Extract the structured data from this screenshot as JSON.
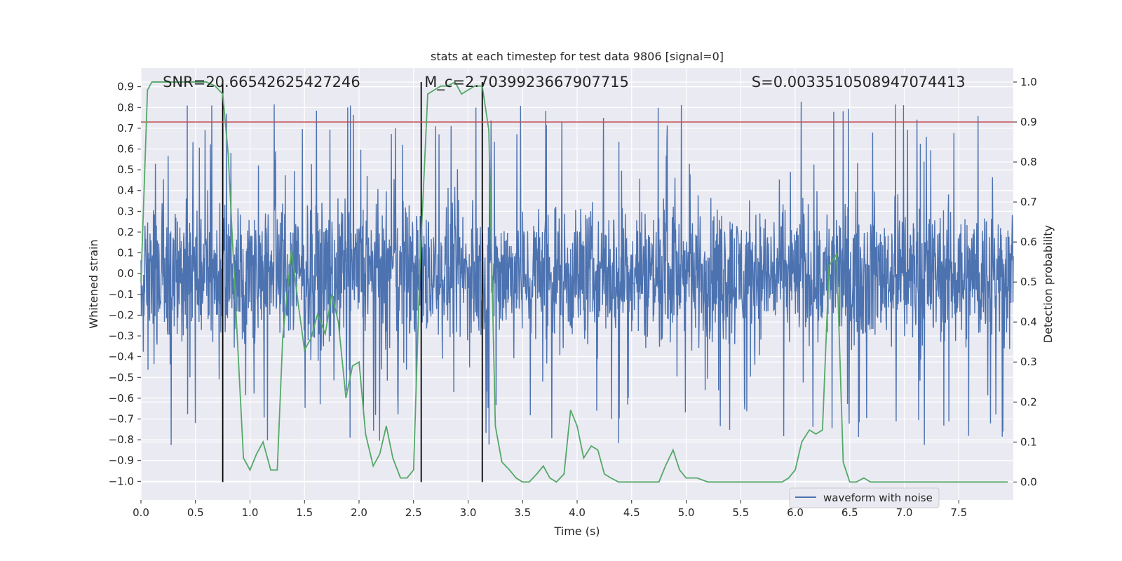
{
  "chart_data": {
    "type": "line",
    "title": "stats at each timestep for test data 9806 [signal=0]",
    "xlabel": "Time (s)",
    "ylabel_left": "Whitened strain",
    "ylabel_right": "Detection probability",
    "xlim": [
      0.0,
      8.0
    ],
    "ylim_left": [
      -1.09,
      0.99
    ],
    "ylim_right": [
      -0.045,
      1.035
    ],
    "x_ticks": [
      0.0,
      0.5,
      1.0,
      1.5,
      2.0,
      2.5,
      3.0,
      3.5,
      4.0,
      4.5,
      5.0,
      5.5,
      6.0,
      6.5,
      7.0,
      7.5
    ],
    "x_tick_labels": [
      "0.0",
      "0.5",
      "1.0",
      "1.5",
      "2.0",
      "2.5",
      "3.0",
      "3.5",
      "4.0",
      "4.5",
      "5.0",
      "5.5",
      "6.0",
      "6.5",
      "7.0",
      "7.5"
    ],
    "y_left_ticks": [
      0.9,
      0.8,
      0.7,
      0.6,
      0.5,
      0.4,
      0.3,
      0.2,
      0.1,
      0.0,
      -0.1,
      -0.2,
      -0.3,
      -0.4,
      -0.5,
      -0.6,
      -0.7,
      -0.8,
      -0.9,
      -1.0
    ],
    "y_left_tick_labels": [
      "0.9",
      "0.8",
      "0.7",
      "0.6",
      "0.5",
      "0.4",
      "0.3",
      "0.2",
      "0.1",
      "0.0",
      "−0.1",
      "−0.2",
      "−0.3",
      "−0.4",
      "−0.5",
      "−0.6",
      "−0.7",
      "−0.8",
      "−0.9",
      "−1.0"
    ],
    "y_right_ticks": [
      1.0,
      0.9,
      0.8,
      0.7,
      0.6,
      0.5,
      0.4,
      0.3,
      0.2,
      0.1,
      0.0
    ],
    "y_right_tick_labels": [
      "1.0",
      "0.9",
      "0.8",
      "0.7",
      "0.6",
      "0.5",
      "0.4",
      "0.3",
      "0.2",
      "0.1",
      "0.0"
    ],
    "grid": true,
    "annotations": [
      {
        "id": "snr",
        "text": "SNR=20.66542625427246",
        "x": 0.2
      },
      {
        "id": "mc",
        "text": "M_c=2.7039923667907715",
        "x": 2.6
      },
      {
        "id": "s",
        "text": "S=0.0033510508947074413",
        "x": 5.6
      }
    ],
    "threshold": {
      "value": 0.9,
      "axis": "right",
      "color": "#c44e52"
    },
    "vertical_lines": [
      0.75,
      2.57,
      3.13
    ],
    "series": [
      {
        "name": "waveform with noise",
        "axis": "left",
        "color": "#4c72b0",
        "kind": "noise-strain",
        "duration_s": 8.0,
        "typical_envelope": [
          -0.45,
          0.45
        ],
        "peak_min": -1.0,
        "peak_max": 0.89
      },
      {
        "axis": "right",
        "color": "#55a868",
        "x": [
          0.0,
          0.06,
          0.1,
          0.2,
          0.3,
          0.4,
          0.5,
          0.6,
          0.68,
          0.75,
          0.8,
          0.88,
          0.94,
          1.0,
          1.06,
          1.12,
          1.19,
          1.25,
          1.3,
          1.38,
          1.44,
          1.5,
          1.56,
          1.62,
          1.69,
          1.75,
          1.81,
          1.88,
          1.94,
          2.0,
          2.06,
          2.13,
          2.19,
          2.25,
          2.31,
          2.38,
          2.44,
          2.5,
          2.56,
          2.63,
          2.69,
          2.75,
          2.81,
          2.88,
          2.94,
          3.0,
          3.06,
          3.13,
          3.19,
          3.25,
          3.31,
          3.38,
          3.44,
          3.5,
          3.56,
          3.63,
          3.69,
          3.75,
          3.81,
          3.88,
          3.94,
          4.0,
          4.06,
          4.13,
          4.19,
          4.25,
          4.31,
          4.38,
          4.5,
          4.6,
          4.7,
          4.75,
          4.81,
          4.88,
          4.94,
          5.0,
          5.1,
          5.2,
          5.3,
          5.5,
          5.7,
          5.8,
          5.88,
          5.94,
          6.0,
          6.06,
          6.13,
          6.19,
          6.25,
          6.31,
          6.38,
          6.44,
          6.5,
          6.56,
          6.63,
          6.69,
          6.75,
          6.81,
          6.88,
          6.94,
          7.0,
          7.2,
          7.4,
          7.5,
          7.6,
          7.7,
          7.8,
          7.9,
          7.95
        ],
        "y": [
          0.5,
          0.98,
          1.0,
          1.0,
          1.0,
          1.0,
          1.0,
          1.0,
          0.99,
          0.97,
          0.82,
          0.38,
          0.06,
          0.03,
          0.07,
          0.1,
          0.03,
          0.03,
          0.36,
          0.58,
          0.45,
          0.33,
          0.36,
          0.42,
          0.37,
          0.47,
          0.4,
          0.21,
          0.29,
          0.3,
          0.12,
          0.04,
          0.07,
          0.14,
          0.06,
          0.01,
          0.01,
          0.03,
          0.55,
          0.97,
          0.98,
          0.99,
          0.99,
          1.0,
          0.97,
          0.98,
          0.99,
          0.99,
          0.88,
          0.14,
          0.05,
          0.03,
          0.01,
          0.0,
          0.0,
          0.02,
          0.04,
          0.01,
          0.0,
          0.02,
          0.18,
          0.14,
          0.06,
          0.09,
          0.08,
          0.02,
          0.01,
          0.0,
          0.0,
          0.0,
          0.0,
          0.0,
          0.04,
          0.08,
          0.03,
          0.01,
          0.01,
          0.0,
          0.0,
          0.0,
          0.0,
          0.0,
          0.0,
          0.01,
          0.03,
          0.1,
          0.13,
          0.12,
          0.13,
          0.54,
          0.57,
          0.05,
          0.0,
          0.0,
          0.01,
          0.0,
          0.0,
          0.0,
          0.0,
          0.0,
          0.0,
          0.0,
          0.0,
          0.0,
          0.0,
          0.0,
          0.0,
          0.0,
          0.0
        ]
      }
    ],
    "legend": {
      "position": "lower-right",
      "entries": [
        "waveform with noise"
      ]
    }
  }
}
